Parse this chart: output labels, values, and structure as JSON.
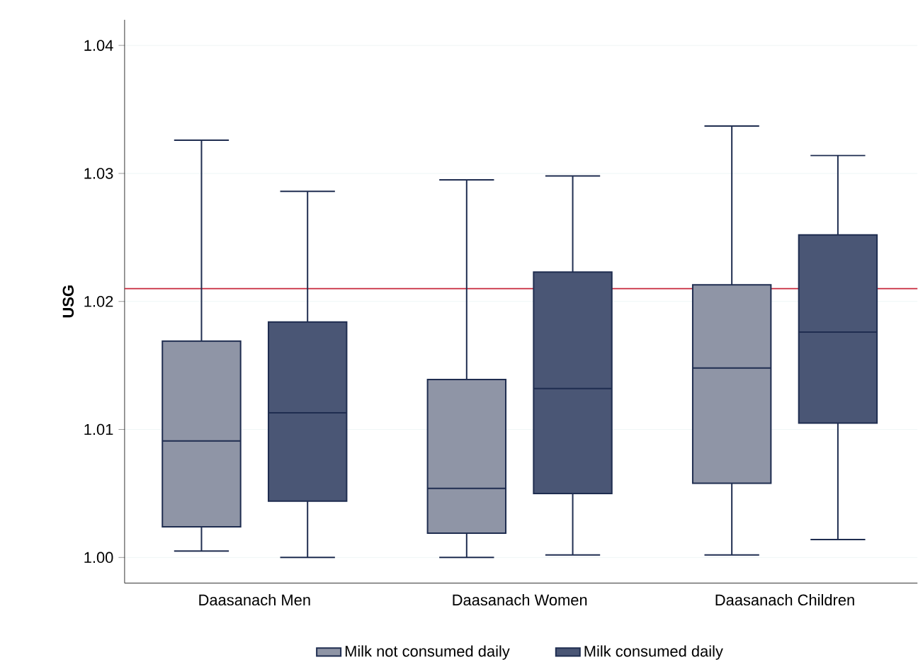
{
  "chart_data": {
    "type": "box",
    "ylabel": "USG",
    "categories": [
      "Daasanach Men",
      "Daasanach Women",
      "Daasanach Children"
    ],
    "series": [
      {
        "name": "Milk not consumed daily",
        "color": "#8f95a6",
        "boxes": [
          {
            "low": 1.0005,
            "q1": 1.0024,
            "median": 1.0091,
            "q3": 1.0169,
            "high": 1.0326
          },
          {
            "low": 1.0,
            "q1": 1.0019,
            "median": 1.0054,
            "q3": 1.0139,
            "high": 1.0295
          },
          {
            "low": 1.0002,
            "q1": 1.0058,
            "median": 1.0148,
            "q3": 1.0213,
            "high": 1.0337
          }
        ]
      },
      {
        "name": "Milk consumed daily",
        "color": "#4a5675",
        "boxes": [
          {
            "low": 1.0,
            "q1": 1.0044,
            "median": 1.0113,
            "q3": 1.0184,
            "high": 1.0286
          },
          {
            "low": 1.0002,
            "q1": 1.005,
            "median": 1.0132,
            "q3": 1.0223,
            "high": 1.0298
          },
          {
            "low": 1.0014,
            "q1": 1.0105,
            "median": 1.0176,
            "q3": 1.0252,
            "high": 1.0314
          }
        ]
      }
    ],
    "ylim": [
      0.998,
      1.042
    ],
    "yticks": [
      {
        "value": 1.0,
        "label": "1.00"
      },
      {
        "value": 1.01,
        "label": "1.01"
      },
      {
        "value": 1.02,
        "label": "1.02"
      },
      {
        "value": 1.03,
        "label": "1.03"
      },
      {
        "value": 1.04,
        "label": "1.04"
      }
    ],
    "ref_lines": [
      {
        "axis": "y",
        "value": 1.021,
        "color": "#c8283c"
      }
    ],
    "grid": "y",
    "legend": "bottom"
  }
}
